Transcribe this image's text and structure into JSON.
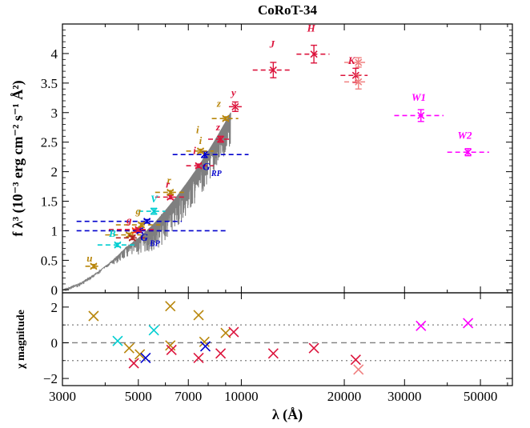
{
  "chart_data": {
    "type": "scatter",
    "title": "CoRoT-34",
    "xlabel": "λ (Å)",
    "ylabel_top": "f λ³ (10⁻³ erg cm⁻² s⁻¹ Å²)",
    "ylabel_bottom": "χ magnitude",
    "x_scale": "log",
    "xlim": [
      3000,
      62000
    ],
    "x_ticks": [
      3000,
      5000,
      7000,
      10000,
      20000,
      30000,
      50000
    ],
    "x_tick_labels": [
      "3000",
      "5000",
      "7000",
      "10000",
      "20000",
      "30000",
      "50000"
    ],
    "top_panel": {
      "ylim": [
        -0.05,
        4.5
      ],
      "y_ticks": [
        0,
        0.5,
        1,
        1.5,
        2,
        2.5,
        3,
        3.5,
        4
      ],
      "y_tick_labels": [
        "0",
        "0.5",
        "1",
        "1.5",
        "2",
        "2.5",
        "3",
        "3.5",
        "4"
      ],
      "model_sed": {
        "color": "#7f7f7f",
        "anchors": [
          [
            3000,
            0
          ],
          [
            3400,
            0.12
          ],
          [
            3800,
            0.3
          ],
          [
            4200,
            0.5
          ],
          [
            4600,
            0.72
          ],
          [
            5000,
            0.88
          ],
          [
            5500,
            1.1
          ],
          [
            6000,
            1.35
          ],
          [
            6500,
            1.6
          ],
          [
            7000,
            1.85
          ],
          [
            7500,
            2.1
          ],
          [
            8000,
            2.35
          ],
          [
            8500,
            2.6
          ],
          [
            9000,
            2.85
          ],
          [
            9300,
            3.0
          ]
        ]
      },
      "photometry": [
        {
          "label": "",
          "x": 3700,
          "y": 0.4,
          "xerr_lo": 3500,
          "xerr_hi": 3900,
          "yerr": 0.03,
          "color": "#b8860b"
        },
        {
          "label": "B",
          "x": 4350,
          "y": 0.76,
          "xerr_lo": 3800,
          "xerr_hi": 4900,
          "yerr": 0.03,
          "color": "#00ced1"
        },
        {
          "label": "",
          "x": 4700,
          "y": 0.93,
          "xerr_lo": 4000,
          "xerr_hi": 5100,
          "yerr": 0.03,
          "color": "#b8860b"
        },
        {
          "label": "",
          "x": 4800,
          "y": 0.88,
          "xerr_lo": 4300,
          "xerr_hi": 5300,
          "yerr": 0.03,
          "color": "#b22222"
        },
        {
          "label": "g",
          "x": 4900,
          "y": 1.0,
          "xerr_lo": 4100,
          "xerr_hi": 5500,
          "yerr": 0.03,
          "color": "#ff4500"
        },
        {
          "label": "G",
          "x": 5050,
          "y": 1.0,
          "xerr_lo": 3300,
          "xerr_hi": 9000,
          "yerr": 0.03,
          "color": "#0000cd"
        },
        {
          "label": "",
          "x": 5000,
          "y": 1.02,
          "xerr_lo": 4100,
          "xerr_hi": 5600,
          "yerr": 0.03,
          "color": "#dc143c"
        },
        {
          "label": "G BP",
          "x": 5300,
          "y": 1.16,
          "xerr_lo": 3300,
          "xerr_hi": 6700,
          "yerr": 0.03,
          "color": "#0000cd"
        },
        {
          "label": "g",
          "x": 5100,
          "y": 1.1,
          "xerr_lo": 4300,
          "xerr_hi": 5800,
          "yerr": 0.03,
          "color": "#b8860b"
        },
        {
          "label": "V",
          "x": 5550,
          "y": 1.33,
          "xerr_lo": 5000,
          "xerr_hi": 6000,
          "yerr": 0.05,
          "color": "#00ced1"
        },
        {
          "label": "r",
          "x": 6200,
          "y": 1.57,
          "xerr_lo": 5600,
          "xerr_hi": 6900,
          "yerr": 0.03,
          "color": "#dc143c"
        },
        {
          "label": "r",
          "x": 6200,
          "y": 1.65,
          "xerr_lo": 5600,
          "xerr_hi": 6900,
          "yerr": 0.03,
          "color": "#b8860b"
        },
        {
          "label": "i",
          "x": 7500,
          "y": 2.1,
          "xerr_lo": 6900,
          "xerr_hi": 8300,
          "yerr": 0.03,
          "color": "#dc143c"
        },
        {
          "label": "G RP",
          "x": 7800,
          "y": 2.29,
          "xerr_lo": 6300,
          "xerr_hi": 10500,
          "yerr": 0.05,
          "color": "#0000cd"
        },
        {
          "label": "i",
          "x": 7600,
          "y": 2.35,
          "xerr_lo": 6900,
          "xerr_hi": 8300,
          "yerr": 0.03,
          "color": "#b8860b"
        },
        {
          "label": "z",
          "x": 8700,
          "y": 2.55,
          "xerr_lo": 8000,
          "xerr_hi": 9400,
          "yerr": 0.05,
          "color": "#dc143c"
        },
        {
          "label": "z",
          "x": 9000,
          "y": 2.9,
          "xerr_lo": 8200,
          "xerr_hi": 9800,
          "yerr": 0.03,
          "color": "#b8860b"
        },
        {
          "label": "y",
          "x": 9600,
          "y": 3.1,
          "xerr_lo": 9200,
          "xerr_hi": 10100,
          "yerr": 0.08,
          "color": "#dc143c"
        },
        {
          "label": "J",
          "x": 12400,
          "y": 3.72,
          "xerr_lo": 10800,
          "xerr_hi": 14000,
          "yerr": 0.13,
          "color": "#dc143c"
        },
        {
          "label": "H",
          "x": 16300,
          "y": 3.99,
          "xerr_lo": 14500,
          "xerr_hi": 18100,
          "yerr": 0.15,
          "color": "#dc143c"
        },
        {
          "label": "K",
          "x": 21600,
          "y": 3.63,
          "xerr_lo": 19500,
          "xerr_hi": 23400,
          "yerr": 0.12,
          "color": "#dc143c"
        },
        {
          "label": "",
          "x": 22000,
          "y": 3.85,
          "xerr_lo": 20000,
          "xerr_hi": 23500,
          "yerr": 0.08,
          "color": "#f08080"
        },
        {
          "label": "",
          "x": 22000,
          "y": 3.52,
          "xerr_lo": 20000,
          "xerr_hi": 23500,
          "yerr": 0.12,
          "color": "#f08080"
        },
        {
          "label": "W1",
          "x": 33500,
          "y": 2.95,
          "xerr_lo": 28000,
          "xerr_hi": 39000,
          "yerr": 0.1,
          "color": "#ff00ff"
        },
        {
          "label": "W2",
          "x": 46000,
          "y": 2.33,
          "xerr_lo": 40000,
          "xerr_hi": 53000,
          "yerr": 0.06,
          "color": "#ff00ff"
        }
      ],
      "band_labels": [
        {
          "text": "y",
          "x": 9500,
          "y": 3.28,
          "color": "#dc143c"
        },
        {
          "text": "J",
          "x": 12300,
          "y": 4.1,
          "color": "#dc143c"
        },
        {
          "text": "H",
          "x": 16000,
          "y": 4.37,
          "color": "#dc143c"
        },
        {
          "text": "K",
          "x": 21000,
          "y": 3.82,
          "color": "#dc143c"
        },
        {
          "text": "z",
          "x": 8600,
          "y": 3.1,
          "color": "#b8860b"
        },
        {
          "text": "z",
          "x": 8550,
          "y": 2.7,
          "color": "#dc143c"
        },
        {
          "text": "i",
          "x": 7450,
          "y": 2.65,
          "color": "#b8860b"
        },
        {
          "text": "i",
          "x": 7600,
          "y": 2.47,
          "color": "#b8860b"
        },
        {
          "text": "i",
          "x": 7300,
          "y": 2.3,
          "color": "#dc143c"
        },
        {
          "text": "G",
          "x": 7900,
          "y": 2.03,
          "color": "#0000cd"
        },
        {
          "text": "r",
          "x": 6150,
          "y": 1.8,
          "color": "#b8860b"
        },
        {
          "text": "r",
          "x": 6100,
          "y": 1.73,
          "color": "#dc143c"
        },
        {
          "text": "V",
          "x": 5560,
          "y": 1.48,
          "color": "#00ced1"
        },
        {
          "text": "g",
          "x": 5000,
          "y": 1.28,
          "color": "#b8860b"
        },
        {
          "text": "g",
          "x": 4700,
          "y": 1.12,
          "color": "#dc143c"
        },
        {
          "text": "B",
          "x": 4200,
          "y": 0.9,
          "color": "#00ced1"
        },
        {
          "text": "G",
          "x": 5200,
          "y": 0.83,
          "color": "#0000cd"
        },
        {
          "text": "u",
          "x": 3600,
          "y": 0.48,
          "color": "#b8860b"
        },
        {
          "text": "W1",
          "x": 33000,
          "y": 3.2,
          "color": "#ff00ff"
        },
        {
          "text": "W2",
          "x": 45000,
          "y": 2.56,
          "color": "#ff00ff"
        }
      ],
      "band_subscripts": {
        "G_RP": "RP",
        "G_BP": "BP"
      }
    },
    "bottom_panel": {
      "ylim": [
        -2.4,
        2.8
      ],
      "y_ticks": [
        -2,
        0,
        2
      ],
      "y_tick_labels": [
        "−2",
        "0",
        "2"
      ],
      "reference_lines": [
        {
          "y": 0,
          "style": "dashed",
          "color": "#7f7f7f"
        },
        {
          "y": 1,
          "style": "dotted",
          "color": "#7f7f7f"
        },
        {
          "y": -1,
          "style": "dotted",
          "color": "#7f7f7f"
        }
      ],
      "residuals": [
        {
          "x": 3700,
          "y": 1.5,
          "color": "#b8860b"
        },
        {
          "x": 4350,
          "y": 0.1,
          "color": "#00ced1"
        },
        {
          "x": 4700,
          "y": -0.3,
          "color": "#b8860b"
        },
        {
          "x": 4850,
          "y": -1.15,
          "color": "#dc143c"
        },
        {
          "x": 5050,
          "y": -0.65,
          "color": "#b8860b"
        },
        {
          "x": 5250,
          "y": -0.85,
          "color": "#0000cd"
        },
        {
          "x": 5550,
          "y": 0.7,
          "color": "#00ced1"
        },
        {
          "x": 6200,
          "y": 2.05,
          "color": "#b8860b"
        },
        {
          "x": 6200,
          "y": -0.15,
          "color": "#b8860b"
        },
        {
          "x": 6250,
          "y": -0.4,
          "color": "#dc143c"
        },
        {
          "x": 7500,
          "y": 1.55,
          "color": "#b8860b"
        },
        {
          "x": 7500,
          "y": -0.85,
          "color": "#dc143c"
        },
        {
          "x": 7800,
          "y": 0.05,
          "color": "#b8860b"
        },
        {
          "x": 7850,
          "y": -0.2,
          "color": "#0000cd"
        },
        {
          "x": 8700,
          "y": -0.6,
          "color": "#dc143c"
        },
        {
          "x": 9000,
          "y": 0.55,
          "color": "#b8860b"
        },
        {
          "x": 9500,
          "y": 0.6,
          "color": "#dc143c"
        },
        {
          "x": 12400,
          "y": -0.6,
          "color": "#dc143c"
        },
        {
          "x": 16300,
          "y": -0.3,
          "color": "#dc143c"
        },
        {
          "x": 21600,
          "y": -0.95,
          "color": "#dc143c"
        },
        {
          "x": 22000,
          "y": -1.5,
          "color": "#f08080"
        },
        {
          "x": 33500,
          "y": 0.95,
          "color": "#ff00ff"
        },
        {
          "x": 46000,
          "y": 1.1,
          "color": "#ff00ff"
        }
      ]
    },
    "grid": false
  }
}
